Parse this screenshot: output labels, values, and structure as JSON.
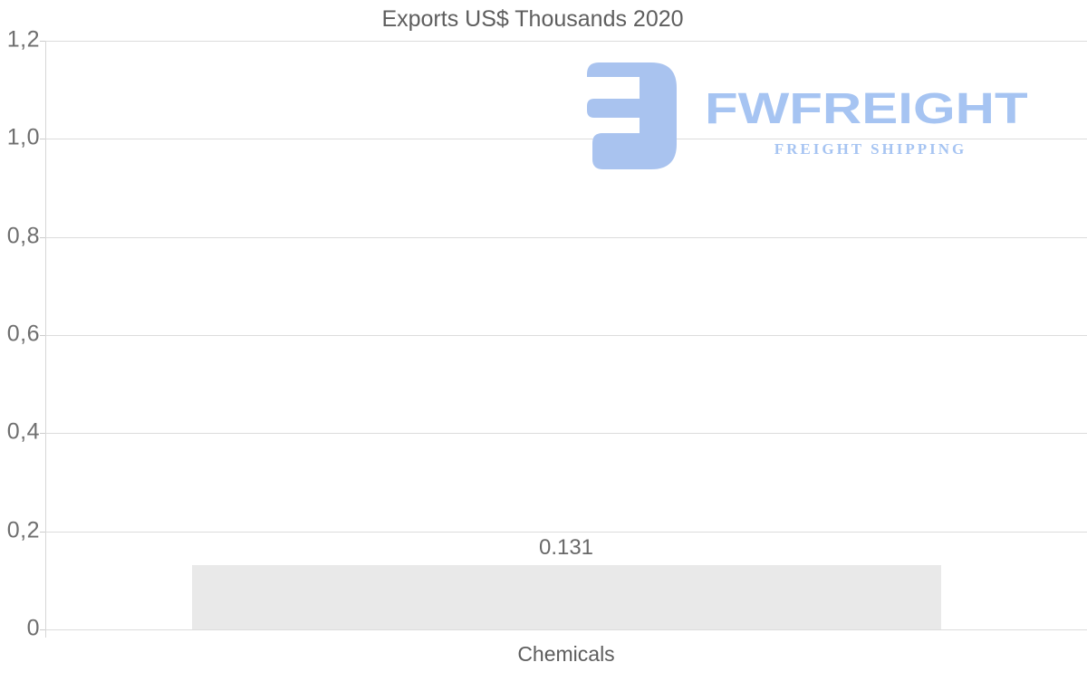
{
  "chart_data": {
    "type": "bar",
    "title": "Exports US$ Thousands 2020",
    "categories": [
      "Chemicals"
    ],
    "values": [
      0.131
    ],
    "data_labels": [
      "0.131"
    ],
    "xlabel": "",
    "ylabel": "",
    "ylim": [
      0,
      1.2
    ],
    "y_tick_values": [
      0,
      0.2,
      0.4,
      0.6,
      0.8,
      1.0,
      1.2
    ],
    "y_tick_labels": [
      "0",
      "0,2",
      "0,4",
      "0,6",
      "0,8",
      "1,0",
      "1,2"
    ],
    "grid": true,
    "legend": false,
    "bar_color": "#e9e9e9",
    "gridline_color": "#dcdcdc",
    "axis_line_color": "#d6d6d6",
    "tick_label_color": "#6e6e6e",
    "title_color": "#5e5e5e"
  },
  "watermark": {
    "brand": "FWFREIGHT",
    "tagline": "FREIGHT SHIPPING",
    "color": "#a6c4f2",
    "icon_color": "#a9c3ef",
    "icon": "fwfreight-logo-icon"
  }
}
